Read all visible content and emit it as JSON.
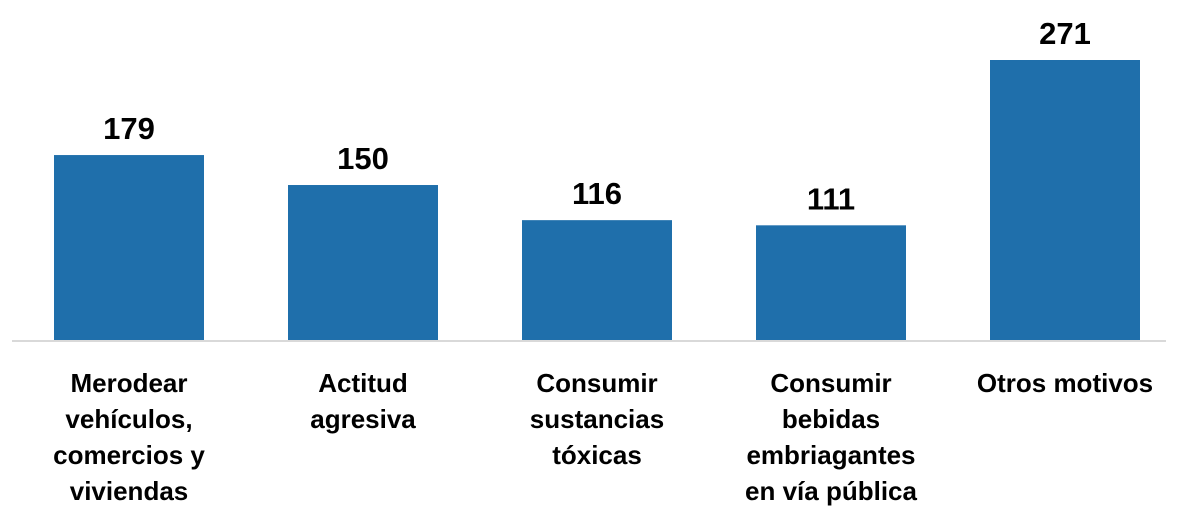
{
  "colors": {
    "bar": "#1f6fab",
    "axis": "#d9d9d9",
    "text": "#000000"
  },
  "chart_data": {
    "type": "bar",
    "title": "",
    "xlabel": "",
    "ylabel": "",
    "categories": [
      [
        "Merodear",
        "vehículos,",
        "comercios y",
        "viviendas"
      ],
      [
        "Actitud",
        "agresiva"
      ],
      [
        "Consumir",
        "sustancias",
        "tóxicas"
      ],
      [
        "Consumir",
        "bebidas",
        "embriagantes",
        "en vía pública"
      ],
      [
        "Otros motivos"
      ]
    ],
    "values": [
      179,
      150,
      116,
      111,
      271
    ],
    "data_labels": [
      "179",
      "150",
      "116",
      "111",
      "271"
    ],
    "ylim": [
      0,
      271
    ],
    "grid": false,
    "legend": "none"
  }
}
